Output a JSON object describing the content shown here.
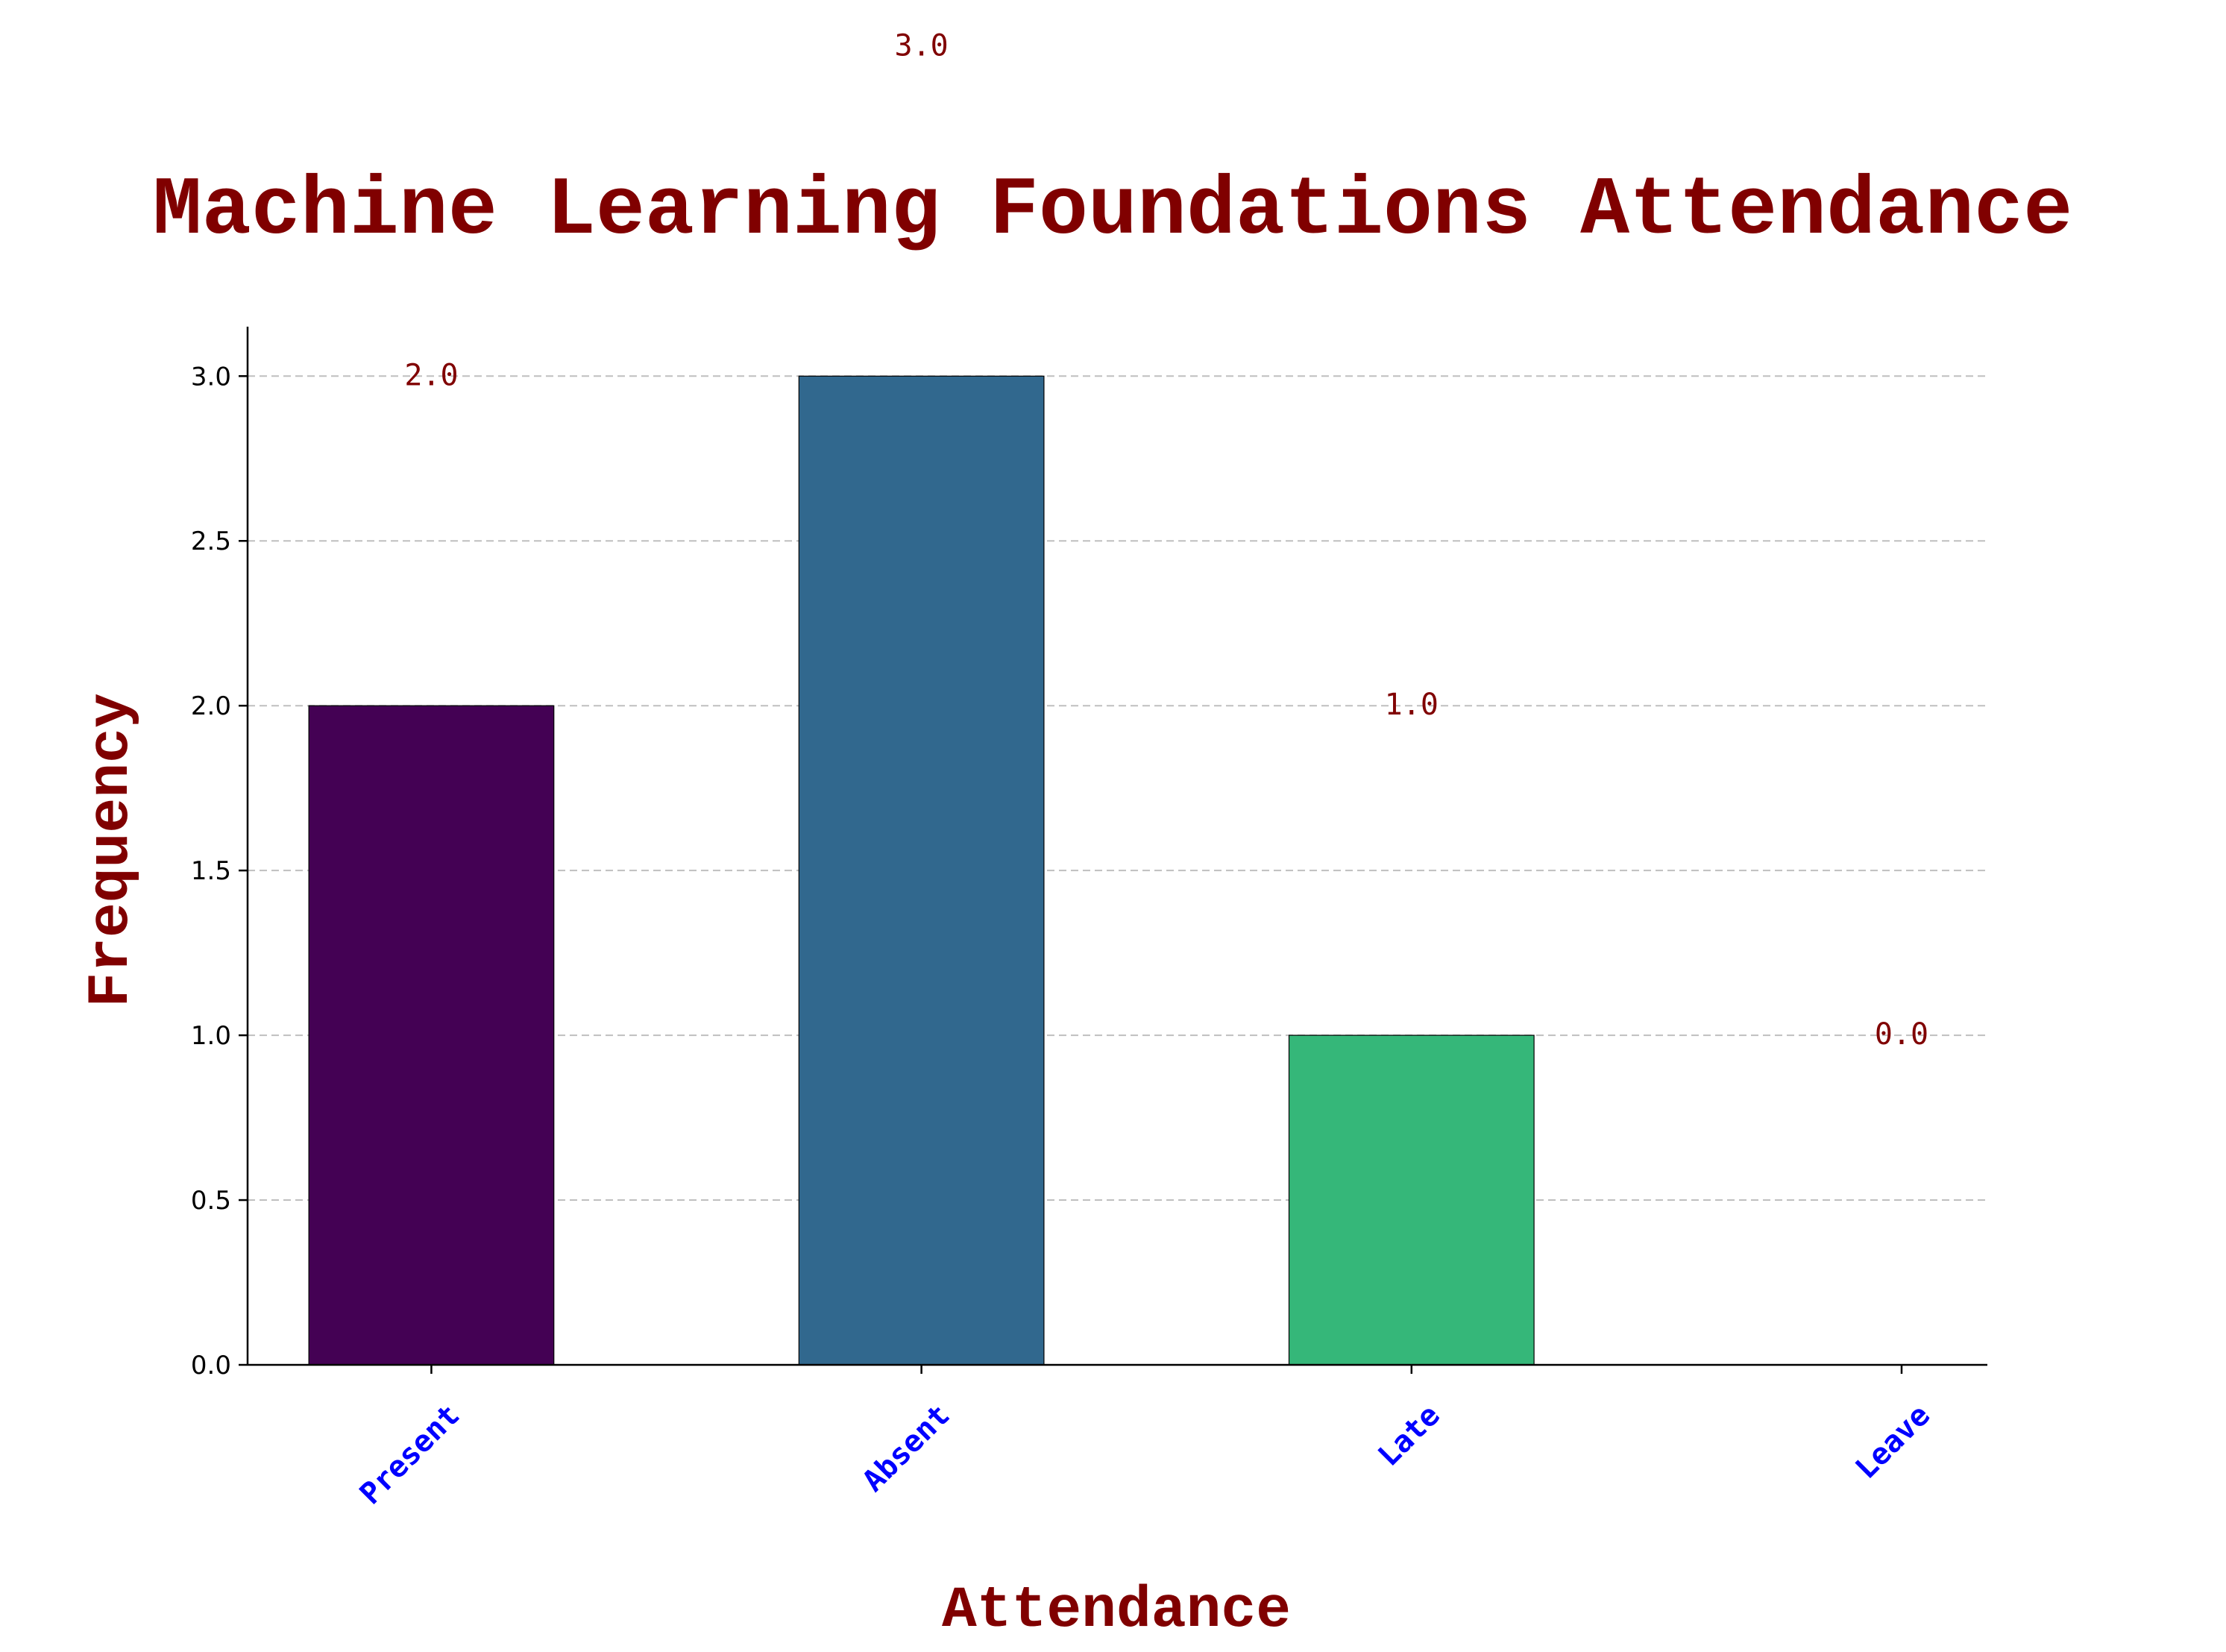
{
  "chart_data": {
    "type": "bar",
    "title": "Machine Learning Foundations Attendance",
    "xlabel": "Attendance",
    "ylabel": "Frequency",
    "categories": [
      "Present",
      "Absent",
      "Late",
      "Leave"
    ],
    "values": [
      2,
      3,
      1,
      0
    ],
    "bar_labels": [
      "2.0",
      "3.0",
      "1.0",
      "0.0"
    ],
    "bar_colors": [
      "#440154",
      "#31688e",
      "#35b779",
      "#fde725"
    ],
    "yticks": [
      "0.0",
      "0.5",
      "1.0",
      "1.5",
      "2.0",
      "2.5",
      "3.0"
    ],
    "ylim": [
      0,
      3.15
    ],
    "grid": "y-dashed",
    "legend": "none",
    "colors": {
      "title": "#800000",
      "axis_title": "#800000",
      "bar_label": "#800000",
      "category_label": "#0000ff",
      "grid": "#bfbfbf",
      "bar_edge": "#000000"
    }
  }
}
